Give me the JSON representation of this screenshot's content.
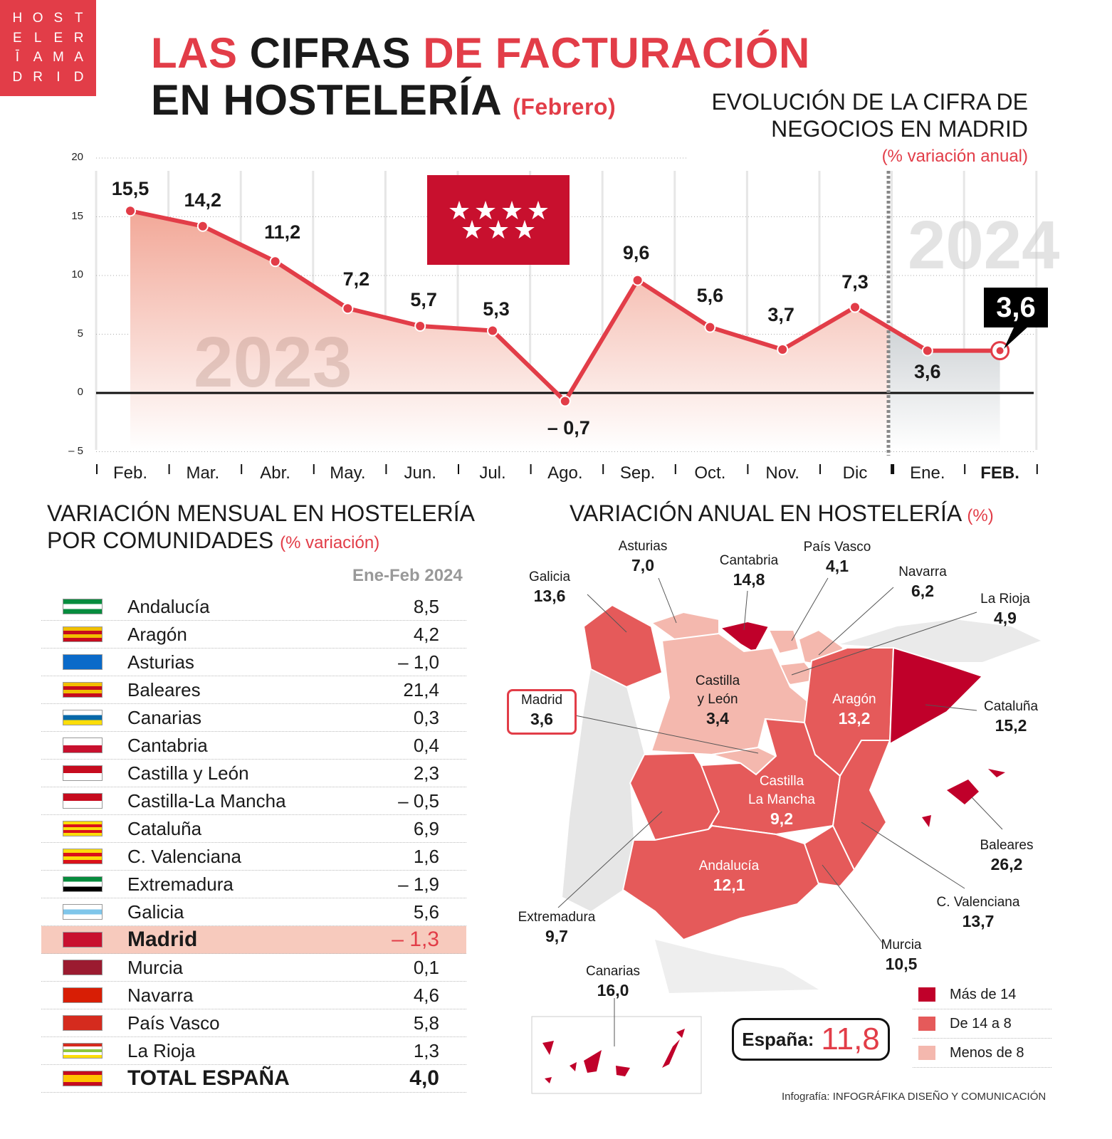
{
  "logo": {
    "letters": [
      "H",
      "O",
      "S",
      "T",
      "E",
      "L",
      "E",
      "R",
      "Ī",
      "A",
      "M",
      "A",
      "D",
      "R",
      "I",
      "D"
    ]
  },
  "header": {
    "title_1a": "LAS",
    "title_1b": "CIFRAS",
    "title_1c": "DE FACTURACIÓN",
    "title_2": "EN HOSTELERÍA",
    "title_2_sub": "(Febrero)"
  },
  "chart_data": [
    {
      "type": "area",
      "title": "EVOLUCIÓN DE LA CIFRA DE NEGOCIOS EN MADRID",
      "subtitle": "(% variación anual)",
      "categories": [
        "Feb.",
        "Mar.",
        "Abr.",
        "May.",
        "Jun.",
        "Jul.",
        "Ago.",
        "Sep.",
        "Oct.",
        "Nov.",
        "Dic",
        "Ene.",
        "FEB."
      ],
      "values": [
        15.5,
        14.2,
        11.2,
        7.2,
        5.7,
        5.3,
        -0.7,
        9.6,
        5.6,
        3.7,
        7.3,
        3.6,
        3.6
      ],
      "value_labels": [
        "15,5",
        "14,2",
        "11,2",
        "7,2",
        "5,7",
        "5,3",
        "– 0,7",
        "9,6",
        "5,6",
        "3,7",
        "7,3",
        "3,6",
        "3,6"
      ],
      "year_labels": [
        "2023",
        "2024"
      ],
      "y_ticks": [
        "20",
        "15",
        "10",
        "5",
        "0",
        "– 5"
      ],
      "ylim": [
        -5,
        20
      ],
      "grid": true,
      "colors": {
        "line": "#e23d48",
        "area_2023": "#f4b8ae",
        "area_2024": "#d9d9d9"
      }
    },
    {
      "type": "table",
      "title": "VARIACIÓN MENSUAL EN HOSTELERÍA POR COMUNIDADES",
      "subtitle": "(% variación)",
      "column": "Ene-Feb 2024",
      "rows": [
        {
          "name": "Andalucía",
          "value": "8,5"
        },
        {
          "name": "Aragón",
          "value": "4,2"
        },
        {
          "name": "Asturias",
          "value": "– 1,0"
        },
        {
          "name": "Baleares",
          "value": "21,4"
        },
        {
          "name": "Canarias",
          "value": "0,3"
        },
        {
          "name": "Cantabria",
          "value": "0,4"
        },
        {
          "name": "Castilla y León",
          "value": "2,3"
        },
        {
          "name": "Castilla-La Mancha",
          "value": "– 0,5"
        },
        {
          "name": "Cataluña",
          "value": "6,9"
        },
        {
          "name": "C. Valenciana",
          "value": "1,6"
        },
        {
          "name": "Extremadura",
          "value": "– 1,9"
        },
        {
          "name": "Galicia",
          "value": "5,6"
        },
        {
          "name": "Madrid",
          "value": "– 1,3"
        },
        {
          "name": "Murcia",
          "value": "0,1"
        },
        {
          "name": "Navarra",
          "value": "4,6"
        },
        {
          "name": "País Vasco",
          "value": "5,8"
        },
        {
          "name": "La Rioja",
          "value": "1,3"
        },
        {
          "name": "TOTAL ESPAÑA",
          "value": "4,0"
        }
      ]
    },
    {
      "type": "choropleth",
      "title": "VARIACIÓN ANUAL EN HOSTELERÍA",
      "subtitle": "(%)",
      "regions": {
        "galicia": {
          "name": "Galicia",
          "value": "13,6"
        },
        "asturias": {
          "name": "Asturias",
          "value": "7,0"
        },
        "cantabria": {
          "name": "Cantabria",
          "value": "14,8"
        },
        "paisvasco": {
          "name": "País Vasco",
          "value": "4,1"
        },
        "navarra": {
          "name": "Navarra",
          "value": "6,2"
        },
        "rioja": {
          "name": "La Rioja",
          "value": "4,9"
        },
        "cyl": {
          "name": "Castilla y León",
          "value": "3,4",
          "name_1": "Castilla",
          "name_2": "y León"
        },
        "madrid": {
          "name": "Madrid",
          "value": "3,6"
        },
        "aragon": {
          "name": "Aragón",
          "value": "13,2"
        },
        "cataluna": {
          "name": "Cataluña",
          "value": "15,2"
        },
        "clm": {
          "name": "Castilla La Mancha",
          "value": "9,2",
          "name_1": "Castilla",
          "name_2": "La Mancha"
        },
        "extremadura": {
          "name": "Extremadura",
          "value": "9,7"
        },
        "valenciana": {
          "name": "C. Valenciana",
          "value": "13,7"
        },
        "murcia": {
          "name": "Murcia",
          "value": "10,5"
        },
        "andalucia": {
          "name": "Andalucía",
          "value": "12,1"
        },
        "baleares": {
          "name": "Baleares",
          "value": "26,2"
        },
        "canarias": {
          "name": "Canarias",
          "value": "16,0"
        }
      },
      "total_label": "España:",
      "total_value": "11,8",
      "legend": [
        {
          "label": "Más de 14",
          "color": "#c0002a"
        },
        {
          "label": "De 14 a 8",
          "color": "#e55a5a"
        },
        {
          "label": "Menos de 8",
          "color": "#f4b8ae"
        }
      ]
    }
  ],
  "credit": {
    "prefix": "Infografía:",
    "name": "INFOGRÁFIKA DISEÑO Y COMUNICACIÓN"
  }
}
